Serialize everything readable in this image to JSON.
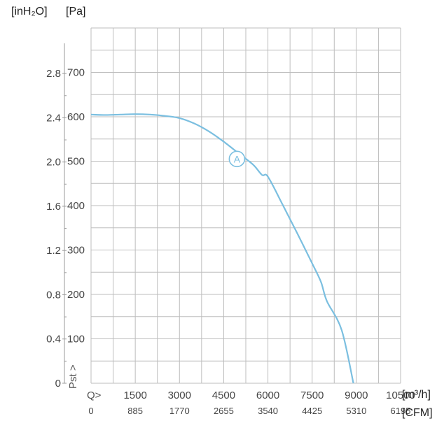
{
  "units": {
    "pressure_inh2o": "[inH₂O]",
    "pressure_pa": "[Pa]",
    "flow_m3h": "[m³/h]",
    "flow_cfm": "[CFM]"
  },
  "axis_markers": {
    "y": "Pst >",
    "x": "Q>"
  },
  "chart_data": {
    "type": "line",
    "title": "",
    "xlabel": "Q>",
    "ylabel": "Pst >",
    "xlim": [
      0,
      10500
    ],
    "ylim": [
      0,
      800
    ],
    "x_ticks_m3h": [
      "1500",
      "3000",
      "4500",
      "6000",
      "7500",
      "9000",
      "10500"
    ],
    "x_ticks_cfm": [
      "0",
      "885",
      "1770",
      "2655",
      "3540",
      "4425",
      "5310",
      "6195"
    ],
    "y_ticks_pa": [
      "100",
      "200",
      "300",
      "400",
      "500",
      "600",
      "700"
    ],
    "y_ticks_inh2o": [
      "0",
      "0.4",
      "0.8",
      "1.2",
      "1.6",
      "2.0",
      "2.4",
      "2.8"
    ],
    "grid": true,
    "line_color": "#7bbfe0",
    "grid_color": "#bdbdbd",
    "series": [
      {
        "x": [
          0,
          500,
          1000,
          1500,
          2000,
          2500,
          3000,
          3500,
          4000,
          4500,
          5000,
          5500,
          5800,
          6000,
          6500,
          7000,
          7500,
          7800,
          8000,
          8500,
          8900
        ],
        "y": [
          605,
          604,
          605,
          606,
          605,
          602,
          597,
          585,
          567,
          544,
          518,
          492,
          469,
          465,
          402,
          337,
          270,
          228,
          185,
          120,
          0
        ]
      }
    ],
    "annotations": [
      {
        "label": "A",
        "x": 4950,
        "y": 505
      }
    ]
  }
}
